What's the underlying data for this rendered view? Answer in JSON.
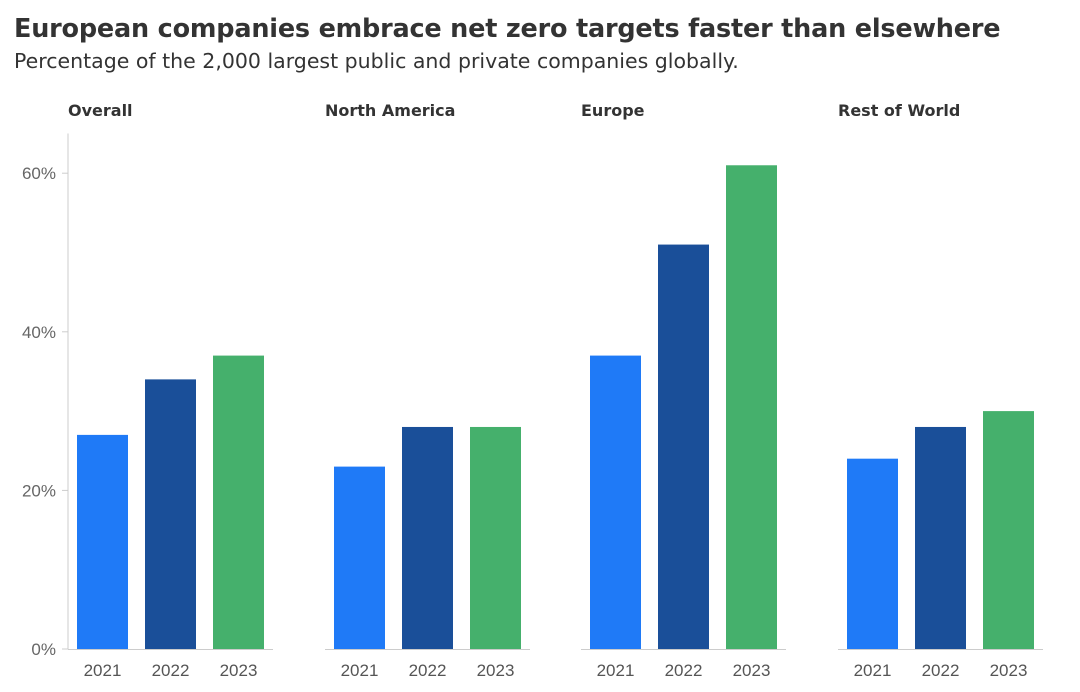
{
  "title": "European companies embrace net zero targets faster than elsewhere",
  "subtitle": "Percentage of the 2,000 largest public and private companies globally.",
  "colors": {
    "2021": "#1f7af7",
    "2022": "#1a4f99",
    "2023": "#45b06c",
    "axis": "#cccccc",
    "grid": "#e6e6e6"
  },
  "chart_data": {
    "type": "bar",
    "title": "European companies embrace net zero targets faster than elsewhere",
    "subtitle": "Percentage of the 2,000 largest public and private companies globally.",
    "categories": [
      "2021",
      "2022",
      "2023"
    ],
    "ylim": [
      0,
      65
    ],
    "yticks": [
      0,
      20,
      40,
      60
    ],
    "ytick_labels": [
      "0%",
      "20%",
      "40%",
      "60%"
    ],
    "unit": "%",
    "panels": [
      {
        "name": "Overall",
        "values": [
          27,
          34,
          37
        ]
      },
      {
        "name": "North America",
        "values": [
          23,
          28,
          28
        ]
      },
      {
        "name": "Europe",
        "values": [
          37,
          51,
          61
        ]
      },
      {
        "name": "Rest of World",
        "values": [
          24,
          28,
          30
        ]
      }
    ]
  }
}
